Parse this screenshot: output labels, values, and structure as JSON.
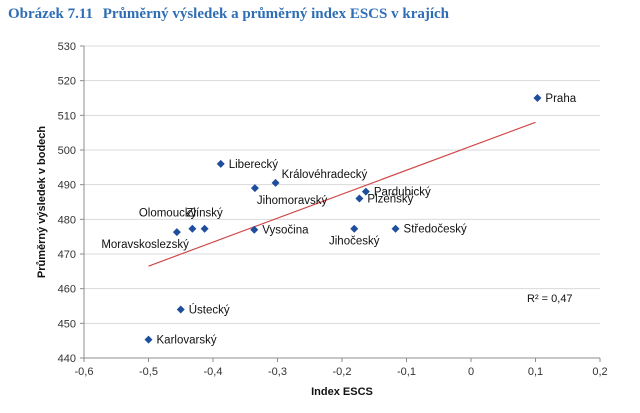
{
  "title": {
    "number": "Obrázek 7.11",
    "text": "Průměrný výsledek a průměrný index ESCS v krajích"
  },
  "chart_data": {
    "type": "scatter",
    "xlabel": "Index ESCS",
    "ylabel": "Průměrný výsledek v bodech",
    "xlim": [
      -0.6,
      0.2
    ],
    "ylim": [
      440,
      530
    ],
    "xticks": [
      -0.6,
      -0.5,
      -0.4,
      -0.3,
      -0.2,
      -0.1,
      0,
      0.1,
      0.2
    ],
    "xtick_labels": [
      "-0,6",
      "-0,5",
      "-0,4",
      "-0,3",
      "-0,2",
      "-0,1",
      "0",
      "0,1",
      "0,2"
    ],
    "yticks": [
      440,
      450,
      460,
      470,
      480,
      490,
      500,
      510,
      520,
      530
    ],
    "ytick_labels": [
      "440",
      "450",
      "460",
      "470",
      "480",
      "490",
      "500",
      "510",
      "520",
      "530"
    ],
    "grid": true,
    "marker_color": "#1f4e9c",
    "trend_color": "#d04a4a",
    "points": [
      {
        "name": "Praha",
        "x": 0.103,
        "y": 515,
        "label_pos": "right"
      },
      {
        "name": "Liberecký",
        "x": -0.388,
        "y": 496,
        "label_pos": "right"
      },
      {
        "name": "Královéhradecký",
        "x": -0.303,
        "y": 490.5,
        "label_pos": "upright"
      },
      {
        "name": "Jihomoravský",
        "x": -0.335,
        "y": 489,
        "label_pos": "downright"
      },
      {
        "name": "Pardubický",
        "x": -0.163,
        "y": 488,
        "label_pos": "right"
      },
      {
        "name": "Plzeňský",
        "x": -0.173,
        "y": 486,
        "label_pos": "right"
      },
      {
        "name": "Olomoucký",
        "x": -0.432,
        "y": 477.3,
        "label_pos": "upleft"
      },
      {
        "name": "Zlínský",
        "x": -0.413,
        "y": 477.3,
        "label_pos": "up"
      },
      {
        "name": "Moravskoslezský",
        "x": -0.456,
        "y": 476.3,
        "label_pos": "downleft"
      },
      {
        "name": "Vysočina",
        "x": -0.336,
        "y": 477,
        "label_pos": "right"
      },
      {
        "name": "Jihočeský",
        "x": -0.181,
        "y": 477.3,
        "label_pos": "down"
      },
      {
        "name": "Středočeský",
        "x": -0.117,
        "y": 477.3,
        "label_pos": "right"
      },
      {
        "name": "Ústecký",
        "x": -0.45,
        "y": 454,
        "label_pos": "right"
      },
      {
        "name": "Karlovarský",
        "x": -0.5,
        "y": 445.3,
        "label_pos": "right"
      }
    ],
    "trendline": {
      "x": [
        -0.5,
        0.1
      ],
      "y": [
        466.5,
        508
      ]
    },
    "annotation": "R² = 0,47"
  }
}
